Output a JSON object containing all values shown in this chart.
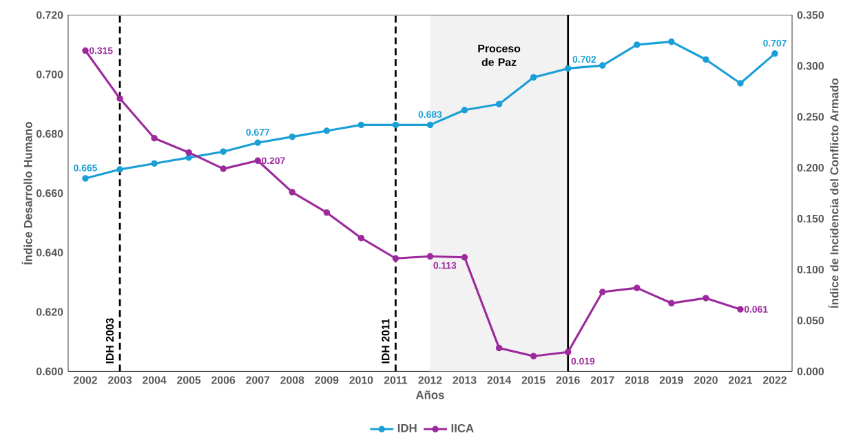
{
  "chart_data": {
    "type": "line",
    "xlabel": "Años",
    "ylabel": "Índice Desarrollo Humano",
    "y2label": "Índice de Incidencia del Conflicto Armado",
    "x": [
      2002,
      2003,
      2004,
      2005,
      2006,
      2007,
      2008,
      2009,
      2010,
      2011,
      2012,
      2013,
      2014,
      2015,
      2016,
      2017,
      2018,
      2019,
      2020,
      2021,
      2022
    ],
    "xlim": [
      2001.5,
      2022.5
    ],
    "xticks": [
      2002,
      2003,
      2004,
      2005,
      2006,
      2007,
      2008,
      2009,
      2010,
      2011,
      2012,
      2013,
      2014,
      2015,
      2016,
      2017,
      2018,
      2019,
      2020,
      2021,
      2022
    ],
    "ylim": [
      0.6,
      0.72
    ],
    "yticks": [
      {
        "value": 0.6,
        "label": "0.600"
      },
      {
        "value": 0.62,
        "label": "0.620"
      },
      {
        "value": 0.64,
        "label": "0.640"
      },
      {
        "value": 0.66,
        "label": "0.660"
      },
      {
        "value": 0.68,
        "label": "0.680"
      },
      {
        "value": 0.7,
        "label": "0.700"
      },
      {
        "value": 0.72,
        "label": "0.720"
      }
    ],
    "y2lim": [
      0,
      0.35
    ],
    "y2ticks": [
      {
        "value": 0,
        "label": "0.000"
      },
      {
        "value": 0.05,
        "label": "0.050"
      },
      {
        "value": 0.1,
        "label": "0.100"
      },
      {
        "value": 0.15,
        "label": "0.150"
      },
      {
        "value": 0.2,
        "label": "0.200"
      },
      {
        "value": 0.25,
        "label": "0.250"
      },
      {
        "value": 0.3,
        "label": "0.300"
      },
      {
        "value": 0.35,
        "label": "0.350"
      }
    ],
    "series": [
      {
        "name": "IDH",
        "color": "#1a9fd6",
        "values": [
          0.665,
          0.668,
          0.67,
          0.672,
          0.674,
          0.677,
          0.679,
          0.681,
          0.683,
          0.683,
          0.683,
          0.688,
          0.69,
          0.699,
          0.702,
          0.703,
          0.71,
          0.711,
          0.705,
          0.697,
          0.707
        ],
        "value_labels": [
          "0.665",
          null,
          null,
          null,
          null,
          "0.677",
          null,
          null,
          null,
          null,
          "0.683",
          null,
          null,
          null,
          "0.702",
          null,
          null,
          null,
          null,
          null,
          "0.707"
        ]
      },
      {
        "name": "IICA",
        "color": "#9c2a9c",
        "axis": "y2",
        "values": [
          0.315,
          0.268,
          0.229,
          0.215,
          0.199,
          0.207,
          0.176,
          0.156,
          0.131,
          0.111,
          0.113,
          0.112,
          0.023,
          0.015,
          0.019,
          0.078,
          0.082,
          0.067,
          0.072,
          0.061,
          null
        ],
        "value_labels": [
          "0.315",
          null,
          null,
          null,
          null,
          "0.207",
          null,
          null,
          null,
          null,
          "0.113",
          null,
          null,
          null,
          "0.019",
          null,
          null,
          null,
          null,
          "0.061",
          null
        ]
      }
    ],
    "ref_lines": [
      {
        "axis": "x",
        "value": 2003,
        "label": "IDH 2003",
        "color": "#000000",
        "line_style": "dashed"
      },
      {
        "axis": "x",
        "value": 2011,
        "label": "IDH 2011",
        "color": "#000000",
        "line_style": "dashed"
      },
      {
        "axis": "x",
        "value": 2016,
        "color": "#000000",
        "line_style": "solid"
      }
    ],
    "bands": [
      {
        "axis": "x",
        "from": 2012,
        "to": 2016,
        "label": "Proceso de Paz",
        "color": "#f2f2f2"
      }
    ],
    "marker": "circle",
    "line_style": "solid",
    "grid": false,
    "legend": "bottom"
  }
}
